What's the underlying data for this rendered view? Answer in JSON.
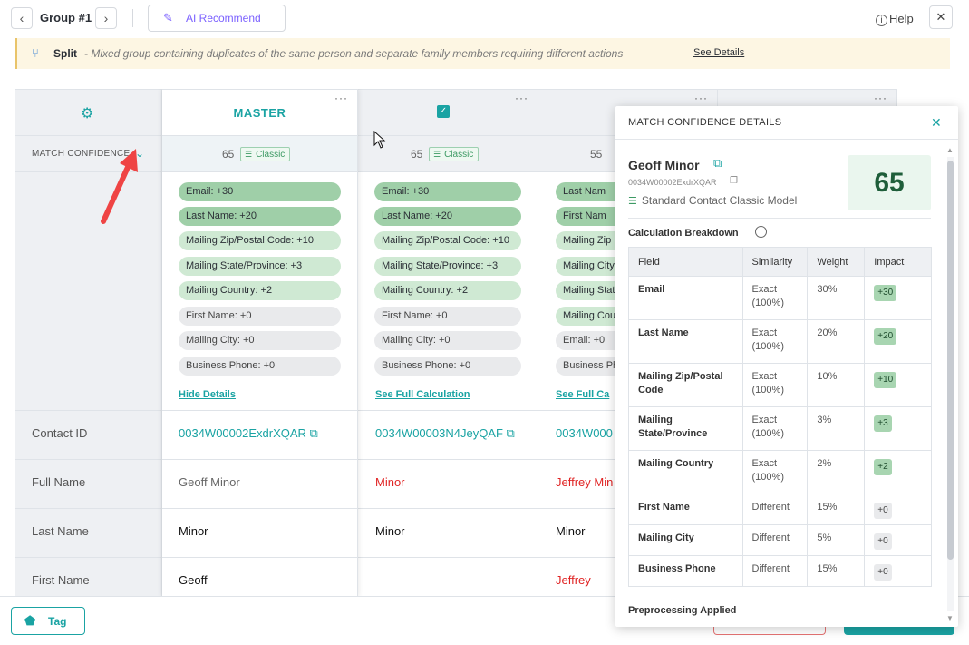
{
  "topbar": {
    "prev_icon": "chevron-left-icon",
    "next_icon": "chevron-right-icon",
    "group_title": "Group #1",
    "ai_recommend_label": "AI Recommend",
    "help_label": "Help",
    "close_icon": "close-icon"
  },
  "banner": {
    "title": "Split",
    "description": "- Mixed group containing duplicates of the same person and separate family members requiring different actions",
    "link": "See Details"
  },
  "grid": {
    "match_confidence_label": "MATCH CONFIDENCE",
    "master_label": "MASTER",
    "more_label": "···",
    "row_labels": [
      "Contact ID",
      "Full Name",
      "Last Name",
      "First Name"
    ],
    "columns": [
      {
        "score": "65",
        "model": "Classic",
        "pills": [
          "Email: +30",
          "Last Name: +20",
          "Mailing Zip/Postal Code: +10",
          "Mailing State/Province: +3",
          "Mailing Country: +2",
          "First Name: +0",
          "Mailing City: +0",
          "Business Phone: +0"
        ],
        "details_link": "Hide Details",
        "contact_id": "0034W00002ExdrXQAR",
        "full_name": "Geoff Minor",
        "last_name": "Minor",
        "first_name": "Geoff"
      },
      {
        "score": "65",
        "model": "Classic",
        "pills": [
          "Email: +30",
          "Last Name: +20",
          "Mailing Zip/Postal Code: +10",
          "Mailing State/Province: +3",
          "Mailing Country: +2",
          "First Name: +0",
          "Mailing City: +0",
          "Business Phone: +0"
        ],
        "details_link": "See Full Calculation",
        "contact_id": "0034W00003N4JeyQAF",
        "full_name": "Minor",
        "last_name": "Minor",
        "first_name": ""
      },
      {
        "score": "55",
        "pills": [
          "Last Nam",
          "First Nam",
          "Mailing Zip",
          "Mailing City",
          "Mailing Stat",
          "Mailing Cou",
          "Email: +0",
          "Business Ph"
        ],
        "details_link": "See Full Ca",
        "contact_id": "0034W000",
        "full_name": "Jeffrey Min",
        "last_name": "Minor",
        "first_name": "Jeffrey"
      }
    ]
  },
  "footer": {
    "tag_label": "Tag"
  },
  "panel": {
    "title": "MATCH CONFIDENCE DETAILS",
    "name": "Geoff Minor",
    "contact_id": "0034W00002ExdrXQAR",
    "model": "Standard Contact Classic Model",
    "score": "65",
    "section_title": "Calculation Breakdown",
    "headers": [
      "Field",
      "Similarity",
      "Weight",
      "Impact"
    ],
    "rows": [
      {
        "field": "Email",
        "similarity": "Exact (100%)",
        "weight": "30%",
        "impact": "+30"
      },
      {
        "field": "Last Name",
        "similarity": "Exact (100%)",
        "weight": "20%",
        "impact": "+20"
      },
      {
        "field": "Mailing Zip/Postal Code",
        "similarity": "Exact (100%)",
        "weight": "10%",
        "impact": "+10"
      },
      {
        "field": "Mailing State/Province",
        "similarity": "Exact (100%)",
        "weight": "3%",
        "impact": "+3"
      },
      {
        "field": "Mailing Country",
        "similarity": "Exact (100%)",
        "weight": "2%",
        "impact": "+2"
      },
      {
        "field": "First Name",
        "similarity": "Different",
        "weight": "15%",
        "impact": "+0"
      },
      {
        "field": "Mailing City",
        "similarity": "Different",
        "weight": "5%",
        "impact": "+0"
      },
      {
        "field": "Business Phone",
        "similarity": "Different",
        "weight": "15%",
        "impact": "+0"
      }
    ],
    "preprocessing_title": "Preprocessing Applied"
  },
  "colors": {
    "accent": "#1aa3a3",
    "ai_purple": "#7b61ff",
    "mismatch_red": "#e02424",
    "score_green": "#1f5e3a"
  }
}
